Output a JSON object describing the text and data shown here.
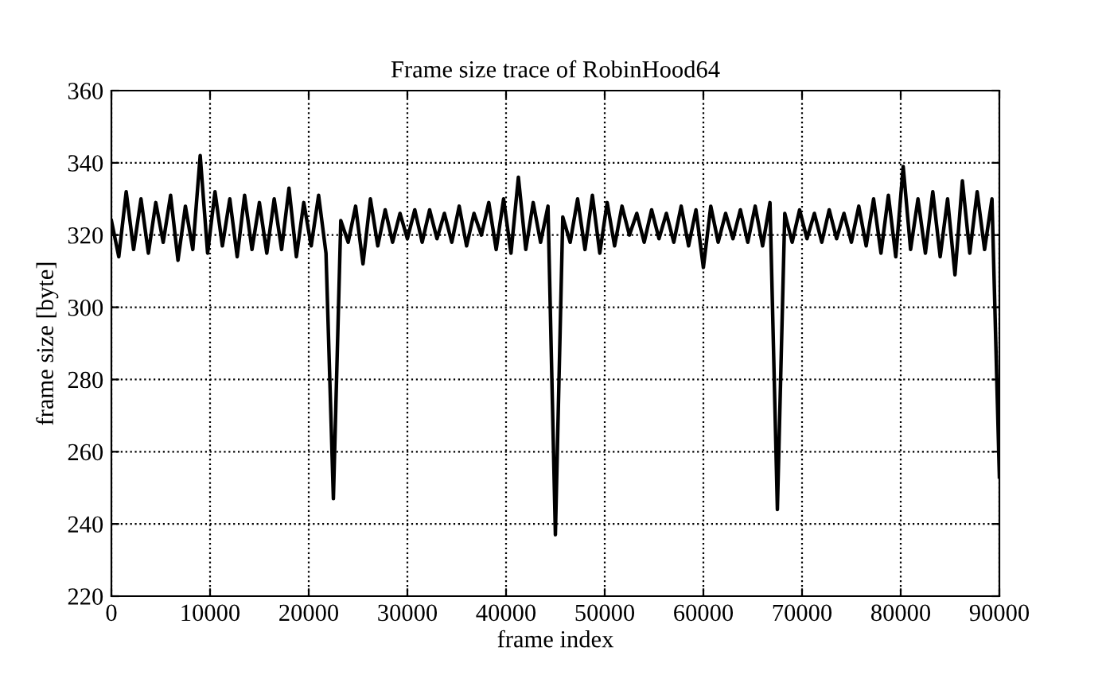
{
  "chart_data": {
    "type": "line",
    "title": "Frame size trace of RobinHood64",
    "xlabel": "frame index",
    "ylabel": "frame size [byte]",
    "x": [
      0,
      750,
      1500,
      2250,
      3000,
      3750,
      4500,
      5250,
      6000,
      6750,
      7500,
      8250,
      9000,
      9750,
      10500,
      11250,
      12000,
      12750,
      13500,
      14250,
      15000,
      15750,
      16500,
      17250,
      18000,
      18750,
      19500,
      20250,
      21000,
      21750,
      22500,
      23250,
      24000,
      24750,
      25500,
      26250,
      27000,
      27750,
      28500,
      29250,
      30000,
      30750,
      31500,
      32250,
      33000,
      33750,
      34500,
      35250,
      36000,
      36750,
      37500,
      38250,
      39000,
      39750,
      40500,
      41250,
      42000,
      42750,
      43500,
      44250,
      45000,
      45750,
      46500,
      47250,
      48000,
      48750,
      49500,
      50250,
      51000,
      51750,
      52500,
      53250,
      54000,
      54750,
      55500,
      56250,
      57000,
      57750,
      58500,
      59250,
      60000,
      60750,
      61500,
      62250,
      63000,
      63750,
      64500,
      65250,
      66000,
      66750,
      67500,
      68250,
      69000,
      69750,
      70500,
      71250,
      72000,
      72750,
      73500,
      74250,
      75000,
      75750,
      76500,
      77250,
      78000,
      78750,
      79500,
      80250,
      81000,
      81750,
      82500,
      83250,
      84000,
      84750,
      85500,
      86250,
      87000,
      87750,
      88500,
      89250,
      90000
    ],
    "series": [
      {
        "color": "#000000",
        "values": [
          324,
          314,
          332,
          316,
          330,
          315,
          329,
          318,
          331,
          313,
          328,
          316,
          342,
          315,
          332,
          317,
          330,
          314,
          331,
          316,
          329,
          315,
          330,
          316,
          333,
          314,
          329,
          317,
          331,
          315,
          247,
          324,
          318,
          328,
          312,
          330,
          317,
          327,
          318,
          326,
          319,
          327,
          318,
          327,
          319,
          326,
          318,
          328,
          317,
          326,
          320,
          329,
          316,
          330,
          315,
          336,
          316,
          329,
          318,
          328,
          237,
          325,
          318,
          330,
          316,
          331,
          315,
          329,
          317,
          328,
          320,
          326,
          318,
          327,
          319,
          326,
          318,
          328,
          317,
          327,
          311,
          328,
          318,
          326,
          319,
          327,
          318,
          328,
          317,
          329,
          244,
          326,
          318,
          327,
          319,
          326,
          318,
          327,
          319,
          326,
          318,
          328,
          317,
          330,
          315,
          331,
          314,
          339,
          316,
          330,
          315,
          332,
          314,
          330,
          309,
          335,
          315,
          332,
          316,
          330,
          253
        ]
      }
    ],
    "xlim": [
      0,
      90000
    ],
    "xticks": [
      0,
      10000,
      20000,
      30000,
      40000,
      50000,
      60000,
      70000,
      80000,
      90000
    ],
    "ylim": [
      220,
      360
    ],
    "yticks": [
      220,
      240,
      260,
      280,
      300,
      320,
      340,
      360
    ],
    "grid": true,
    "line_style": "solid",
    "marker": "none"
  }
}
